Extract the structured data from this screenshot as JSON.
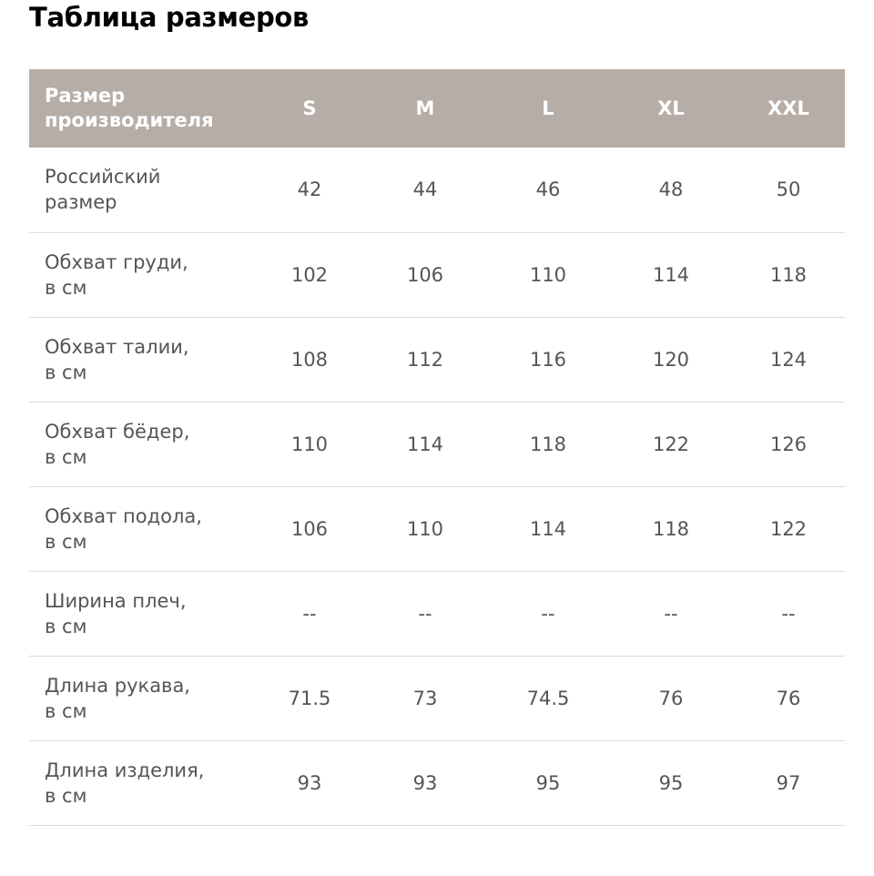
{
  "header": {
    "title": "Таблица размеров"
  },
  "table": {
    "columns": [
      "Размер\nпроизводителя",
      "S",
      "M",
      "L",
      "XL",
      "XXL"
    ],
    "rows": [
      [
        "Российский\nразмер",
        42,
        44,
        46,
        48,
        50
      ],
      [
        "Обхват груди,\nв см",
        102,
        106,
        110,
        114,
        118
      ],
      [
        "Обхват талии,\nв см",
        108,
        112,
        116,
        120,
        124
      ],
      [
        "Обхват бёдер,\nв см",
        110,
        114,
        118,
        122,
        126
      ],
      [
        "Обхват подола,\nв см",
        106,
        110,
        114,
        118,
        122
      ],
      [
        "Ширина плеч,\nв см",
        "--",
        "--",
        "--",
        "--",
        "--"
      ],
      [
        "Длина рукава,\nв см",
        71.5,
        73,
        74.5,
        76,
        76
      ],
      [
        "Длина изделия,\nв см",
        93,
        93,
        95,
        95,
        97
      ]
    ]
  }
}
